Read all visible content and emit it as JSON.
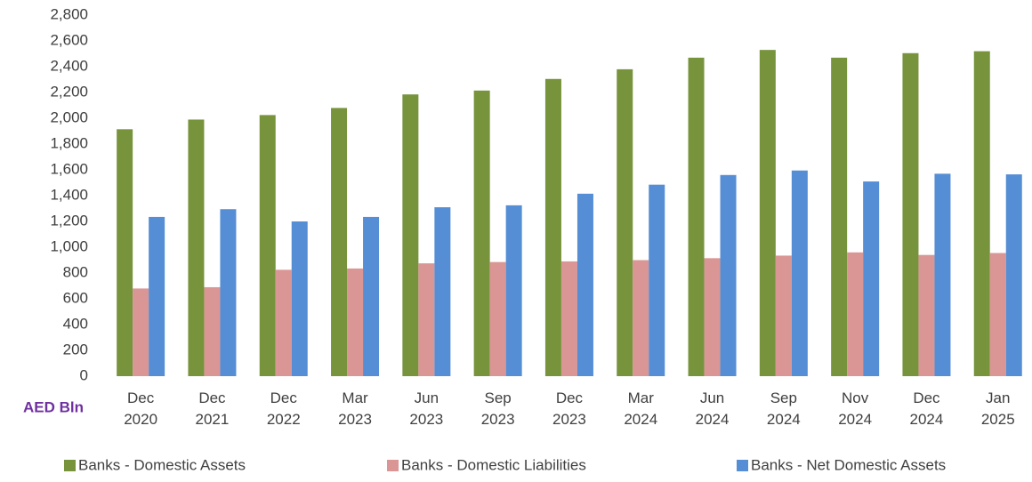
{
  "chart_data": {
    "type": "bar",
    "y_label": "AED Bln",
    "categories": [
      "Dec 2020",
      "Dec 2021",
      "Dec 2022",
      "Mar 2023",
      "Jun 2023",
      "Sep 2023",
      "Dec 2023",
      "Mar 2024",
      "Jun 2024",
      "Sep 2024",
      "Nov 2024",
      "Dec 2024",
      "Jan 2025"
    ],
    "series": [
      {
        "name": "Banks - Domestic Assets",
        "color": "#77933c",
        "values": [
          1915,
          1990,
          2025,
          2080,
          2185,
          2215,
          2305,
          2380,
          2470,
          2530,
          2470,
          2505,
          2520
        ]
      },
      {
        "name": "Banks - Domestic Liabilities",
        "color": "#d99694",
        "values": [
          680,
          690,
          825,
          835,
          875,
          885,
          890,
          900,
          915,
          935,
          960,
          940,
          955
        ]
      },
      {
        "name": "Banks - Net Domestic Assets",
        "color": "#558ed5",
        "values": [
          1235,
          1295,
          1200,
          1235,
          1310,
          1325,
          1415,
          1485,
          1560,
          1595,
          1510,
          1570,
          1565
        ]
      }
    ],
    "ylim": [
      0,
      2800
    ],
    "yticks": [
      0,
      200,
      400,
      600,
      800,
      {
        "value": 1000,
        "label": "1,000"
      },
      {
        "value": 1200,
        "label": "1,200"
      },
      {
        "value": 1400,
        "label": "1,400"
      },
      {
        "value": 1600,
        "label": "1,600"
      },
      {
        "value": 1800,
        "label": "1,800"
      },
      {
        "value": 2000,
        "label": "2,000"
      },
      {
        "value": 2200,
        "label": "2,200"
      },
      {
        "value": 2400,
        "label": "2,400"
      },
      {
        "value": 2600,
        "label": "2,600"
      },
      {
        "value": 2800,
        "label": "2,800"
      }
    ],
    "grid": false,
    "legend": "bottom"
  }
}
